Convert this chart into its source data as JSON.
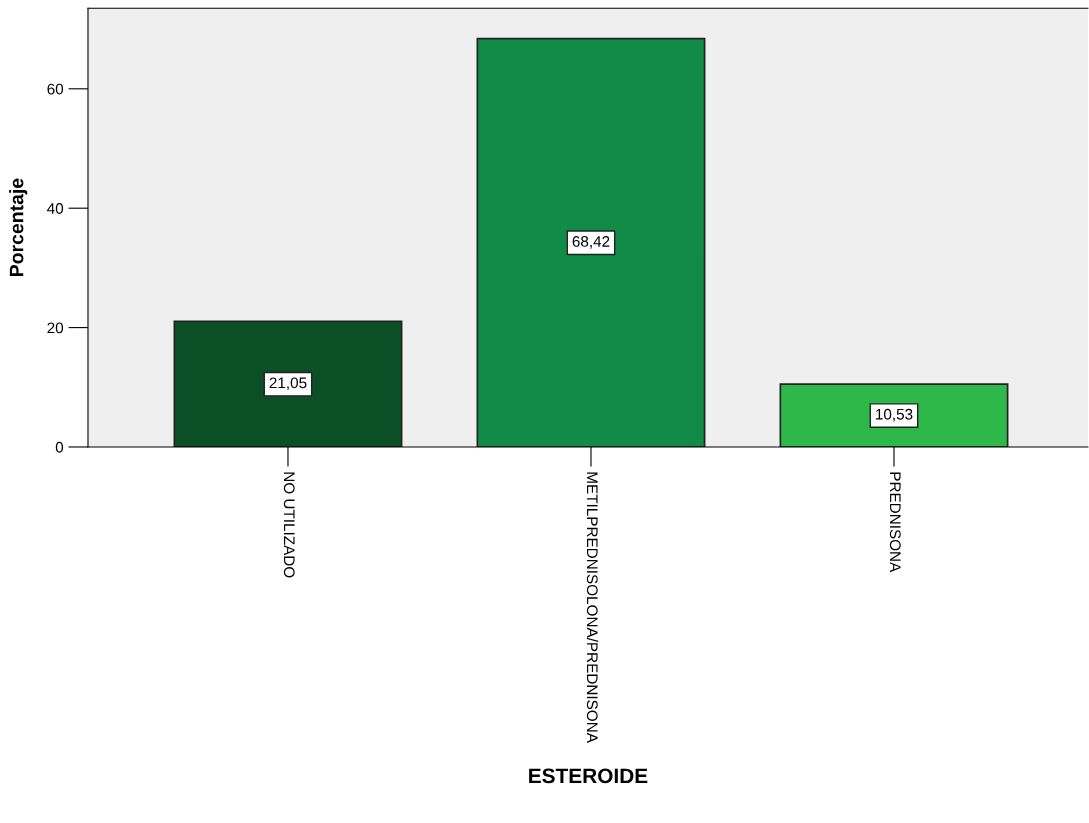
{
  "chart_data": {
    "type": "bar",
    "xlabel": "ESTEROIDE",
    "ylabel": "Porcentaje",
    "categories": [
      "NO UTILIZADO",
      "METILPREDNISOLONA/PREDNISONA",
      "PREDNISONA"
    ],
    "values": [
      21.05,
      68.42,
      10.53
    ],
    "colors": [
      "#0b4f27",
      "#138b48",
      "#2fb84a"
    ],
    "value_labels": [
      "21,05",
      "68,42",
      "10,53"
    ],
    "ylim": [
      0,
      73.5
    ],
    "yticks": [
      0,
      20,
      40,
      60
    ],
    "grid": false,
    "legend": false
  }
}
